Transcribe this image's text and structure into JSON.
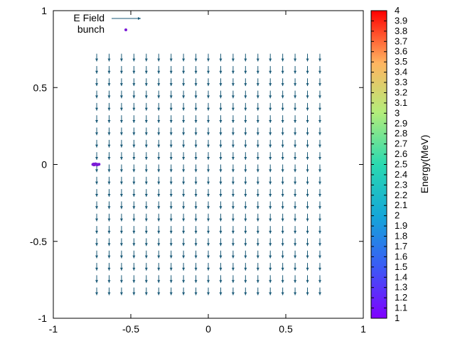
{
  "chart_data": {
    "type": "vector_field",
    "xlim": [
      -1,
      1
    ],
    "ylim": [
      -1,
      1
    ],
    "x_ticks": [
      "-1",
      "-0.5",
      "0",
      "0.5",
      "1"
    ],
    "y_ticks": [
      "1",
      "0.5",
      "0",
      "-0.5",
      "-1"
    ],
    "legend": [
      {
        "label": "E Field",
        "marker": "arrow",
        "color": "#1a5a78"
      },
      {
        "label": "bunch",
        "marker": "point",
        "color": "#7a1bd6"
      }
    ],
    "field": {
      "x_start": -0.72,
      "x_end": 0.72,
      "x_count": 19,
      "y_start": 0.72,
      "y_end": -0.8,
      "y_count": 20,
      "vector": [
        0,
        -0.05
      ],
      "color": "#1a5a78"
    },
    "bunch": {
      "points": [
        [
          -0.745,
          0.0
        ],
        [
          -0.74,
          0.003
        ],
        [
          -0.735,
          -0.002
        ],
        [
          -0.73,
          0.001
        ],
        [
          -0.725,
          0.0
        ],
        [
          -0.72,
          0.002
        ],
        [
          -0.715,
          -0.001
        ],
        [
          -0.71,
          0.0
        ],
        [
          -0.705,
          0.001
        ],
        [
          -0.738,
          -0.003
        ],
        [
          -0.728,
          0.004
        ],
        [
          -0.718,
          -0.003
        ]
      ],
      "color": "#7a1bd6"
    },
    "colorbar": {
      "label": "Energy(MeV)",
      "range": [
        1,
        4
      ],
      "ticks": [
        "1",
        "1.1",
        "1.2",
        "1.3",
        "1.4",
        "1.5",
        "1.6",
        "1.7",
        "1.8",
        "1.9",
        "2",
        "2.1",
        "2.2",
        "2.3",
        "2.4",
        "2.5",
        "2.6",
        "2.7",
        "2.8",
        "2.9",
        "3",
        "3.1",
        "3.2",
        "3.3",
        "3.4",
        "3.5",
        "3.6",
        "3.7",
        "3.8",
        "3.9",
        "4"
      ],
      "palette": "rainbow"
    }
  }
}
